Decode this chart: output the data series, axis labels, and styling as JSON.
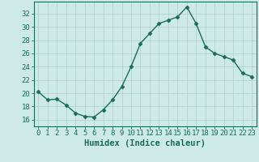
{
  "x": [
    0,
    1,
    2,
    3,
    4,
    5,
    6,
    7,
    8,
    9,
    10,
    11,
    12,
    13,
    14,
    15,
    16,
    17,
    18,
    19,
    20,
    21,
    22,
    23
  ],
  "y": [
    20.2,
    19.0,
    19.1,
    18.2,
    17.0,
    16.5,
    16.4,
    17.5,
    19.0,
    21.0,
    24.0,
    27.5,
    29.0,
    30.5,
    31.0,
    31.5,
    33.0,
    30.5,
    27.0,
    26.0,
    25.5,
    25.0,
    23.0,
    22.5
  ],
  "line_color": "#1a6b5a",
  "marker": "D",
  "marker_size": 2.5,
  "bg_color": "#ceeae8",
  "grid_color": "#aacfcc",
  "axis_color": "#1a6b5a",
  "xlabel": "Humidex (Indice chaleur)",
  "xlim": [
    -0.5,
    23.5
  ],
  "ylim": [
    15.0,
    33.8
  ],
  "yticks": [
    16,
    18,
    20,
    22,
    24,
    26,
    28,
    30,
    32
  ],
  "xticks": [
    0,
    1,
    2,
    3,
    4,
    5,
    6,
    7,
    8,
    9,
    10,
    11,
    12,
    13,
    14,
    15,
    16,
    17,
    18,
    19,
    20,
    21,
    22,
    23
  ],
  "xlabel_fontsize": 7.5,
  "tick_fontsize": 6.5,
  "line_width": 1.0
}
